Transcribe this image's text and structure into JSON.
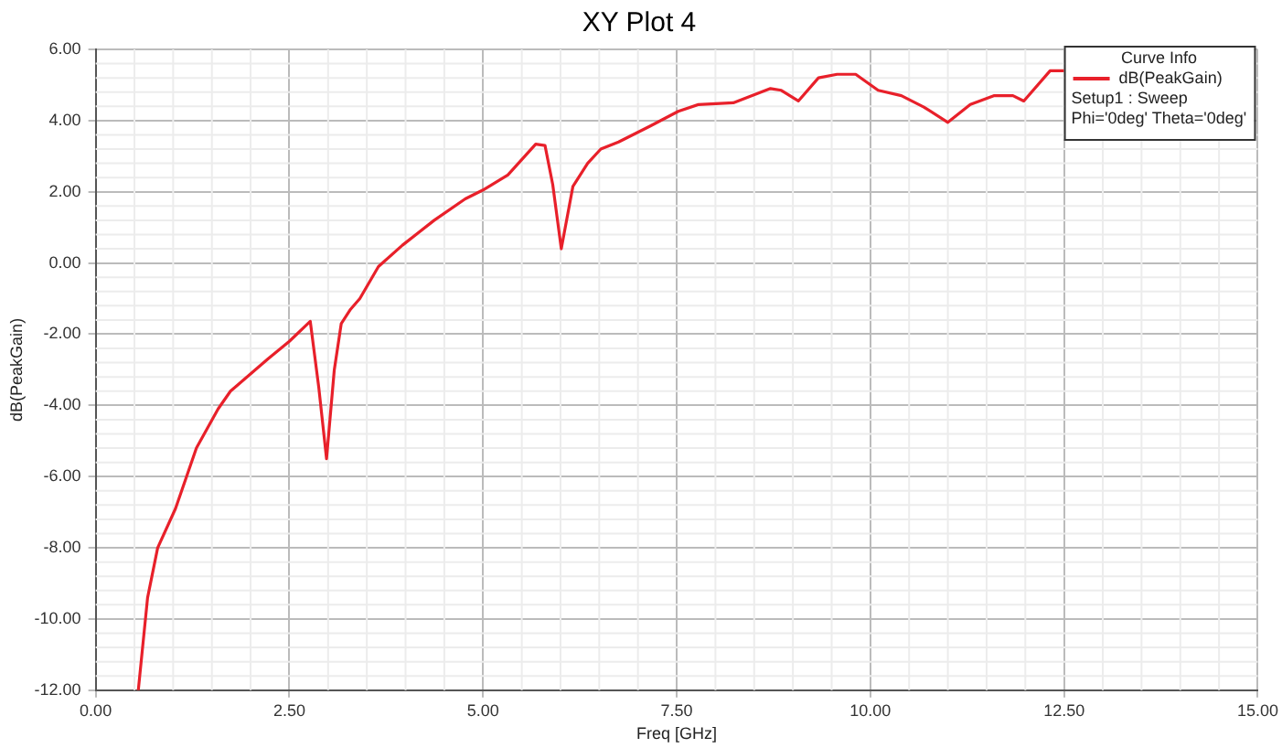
{
  "chart_data": {
    "type": "line",
    "title": "XY Plot 4",
    "xlabel": "Freq [GHz]",
    "ylabel": "dB(PeakGain)",
    "legend_title": "Curve Info",
    "legend": "top right",
    "grid": true,
    "marker": "none",
    "line_style": "solid",
    "xlim": [
      0,
      15
    ],
    "ylim": [
      -12,
      6
    ],
    "xticks": [
      {
        "value": 0,
        "label": "0.00"
      },
      {
        "value": 2.5,
        "label": "2.50"
      },
      {
        "value": 5,
        "label": "5.00"
      },
      {
        "value": 7.5,
        "label": "7.50"
      },
      {
        "value": 10,
        "label": "10.00"
      },
      {
        "value": 12.5,
        "label": "12.50"
      },
      {
        "value": 15,
        "label": "15.00"
      }
    ],
    "yticks": [
      {
        "value": -12,
        "label": "-12.00"
      },
      {
        "value": -10,
        "label": "-10.00"
      },
      {
        "value": -8,
        "label": "-8.00"
      },
      {
        "value": -6,
        "label": "-6.00"
      },
      {
        "value": -4,
        "label": "-4.00"
      },
      {
        "value": -2,
        "label": "-2.00"
      },
      {
        "value": 0,
        "label": "0.00"
      },
      {
        "value": 2,
        "label": "2.00"
      },
      {
        "value": 4,
        "label": "4.00"
      },
      {
        "value": 6,
        "label": "6.00"
      }
    ],
    "annotations": [
      "Setup1 : Sweep",
      "Phi='0deg' Theta='0deg'"
    ],
    "series": [
      {
        "name": "dB(PeakGain)",
        "color": "#e8202a",
        "x": [
          0.55,
          0.67,
          0.8,
          1.03,
          1.3,
          1.58,
          1.74,
          2.22,
          2.5,
          2.77,
          2.88,
          2.98,
          3.08,
          3.17,
          3.29,
          3.41,
          3.65,
          3.96,
          4.37,
          4.77,
          5.0,
          5.32,
          5.68,
          5.8,
          5.9,
          6.01,
          6.16,
          6.35,
          6.52,
          6.75,
          7.16,
          7.52,
          7.78,
          8.23,
          8.71,
          8.85,
          9.07,
          9.33,
          9.57,
          9.81,
          10.1,
          10.4,
          10.69,
          11.0,
          11.29,
          11.6,
          11.84,
          11.98,
          12.32,
          12.56
        ],
        "values": [
          -12,
          -9.4,
          -8.0,
          -6.9,
          -5.2,
          -4.1,
          -3.6,
          -2.7,
          -2.2,
          -1.64,
          -3.5,
          -5.5,
          -3.0,
          -1.7,
          -1.3,
          -1.0,
          -0.1,
          0.5,
          1.2,
          1.8,
          2.05,
          2.47,
          3.34,
          3.3,
          2.2,
          0.4,
          2.15,
          2.8,
          3.2,
          3.4,
          3.85,
          4.26,
          4.45,
          4.5,
          4.9,
          4.85,
          4.55,
          5.2,
          5.3,
          5.3,
          4.85,
          4.7,
          4.38,
          3.95,
          4.45,
          4.7,
          4.7,
          4.55,
          5.4,
          5.4
        ]
      }
    ]
  }
}
